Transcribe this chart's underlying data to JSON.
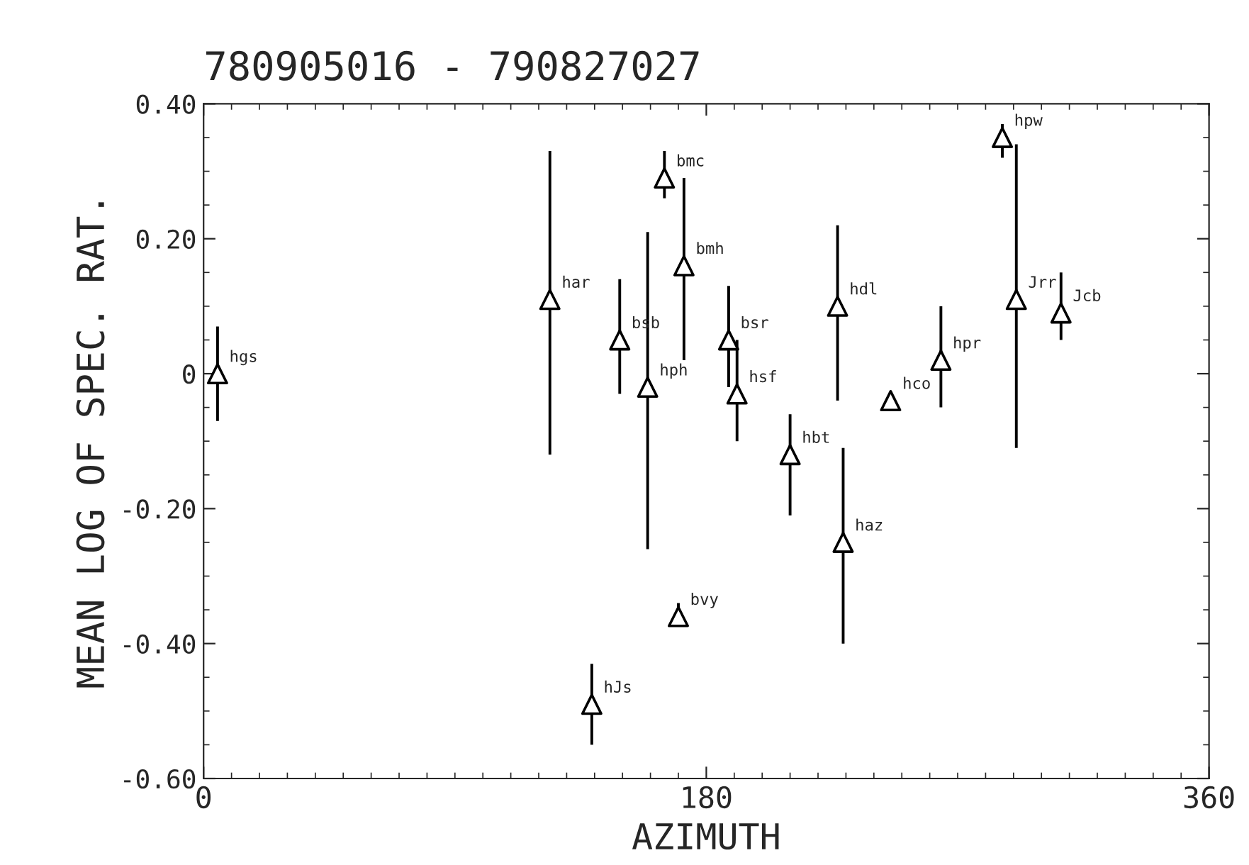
{
  "chart_data": {
    "type": "scatter",
    "title": "780905016 - 790827027",
    "xlabel": "AZIMUTH",
    "ylabel": "MEAN LOG OF SPEC. RAT.",
    "x": [
      5,
      124,
      149,
      159,
      165,
      172,
      188,
      191,
      210,
      227,
      229,
      246,
      264,
      286,
      291,
      307,
      139,
      170
    ],
    "series": [
      {
        "color": "#000000",
        "values": [
          0.0,
          0.11,
          0.05,
          -0.02,
          0.29,
          0.16,
          0.05,
          -0.03,
          -0.12,
          0.1,
          -0.25,
          -0.04,
          0.02,
          0.35,
          0.11,
          0.09,
          -0.49,
          -0.36
        ],
        "errors": [
          [
            -0.07,
            0.07
          ],
          [
            -0.12,
            0.33
          ],
          [
            -0.03,
            0.14
          ],
          [
            -0.26,
            0.21
          ],
          [
            0.26,
            0.33
          ],
          [
            0.02,
            0.29
          ],
          [
            -0.02,
            0.13
          ],
          [
            -0.1,
            0.05
          ],
          [
            -0.21,
            -0.06
          ],
          [
            -0.04,
            0.22
          ],
          [
            -0.4,
            -0.11
          ],
          null,
          [
            -0.05,
            0.1
          ],
          [
            0.32,
            0.37
          ],
          [
            -0.11,
            0.34
          ],
          [
            0.05,
            0.15
          ],
          [
            -0.55,
            -0.43
          ],
          [
            -0.37,
            -0.34
          ]
        ]
      }
    ],
    "annotations": [
      {
        "text": "hgs",
        "x": 5,
        "y": 0.0
      },
      {
        "text": "har",
        "x": 124,
        "y": 0.11
      },
      {
        "text": "bsb",
        "x": 149,
        "y": 0.05
      },
      {
        "text": "hph",
        "x": 159,
        "y": -0.02
      },
      {
        "text": "bmc",
        "x": 165,
        "y": 0.29
      },
      {
        "text": "bmh",
        "x": 172,
        "y": 0.16
      },
      {
        "text": "bsr",
        "x": 188,
        "y": 0.05
      },
      {
        "text": "hsf",
        "x": 191,
        "y": -0.03
      },
      {
        "text": "hbt",
        "x": 210,
        "y": -0.12
      },
      {
        "text": "hdl",
        "x": 227,
        "y": 0.1
      },
      {
        "text": "haz",
        "x": 229,
        "y": -0.25
      },
      {
        "text": "hco",
        "x": 246,
        "y": -0.04
      },
      {
        "text": "hpr",
        "x": 264,
        "y": 0.02
      },
      {
        "text": "hpw",
        "x": 286,
        "y": 0.35
      },
      {
        "text": "Jrr",
        "x": 291,
        "y": 0.11
      },
      {
        "text": "Jcb",
        "x": 307,
        "y": 0.09
      },
      {
        "text": "hJs",
        "x": 139,
        "y": -0.49
      },
      {
        "text": "bvy",
        "x": 170,
        "y": -0.36
      }
    ],
    "xlim": [
      0,
      360
    ],
    "xticks": [
      0,
      180,
      360
    ],
    "ylim": [
      -0.6,
      0.4
    ],
    "yticks": [
      {
        "value": -0.6,
        "label": "-0.60"
      },
      {
        "value": -0.4,
        "label": "-0.40"
      },
      {
        "value": -0.2,
        "label": "-0.20"
      },
      {
        "value": 0,
        "label": "0"
      },
      {
        "value": 0.2,
        "label": "0.20"
      },
      {
        "value": 0.4,
        "label": "0.40"
      }
    ],
    "marker": "triangle",
    "grid": false,
    "legend": false
  }
}
